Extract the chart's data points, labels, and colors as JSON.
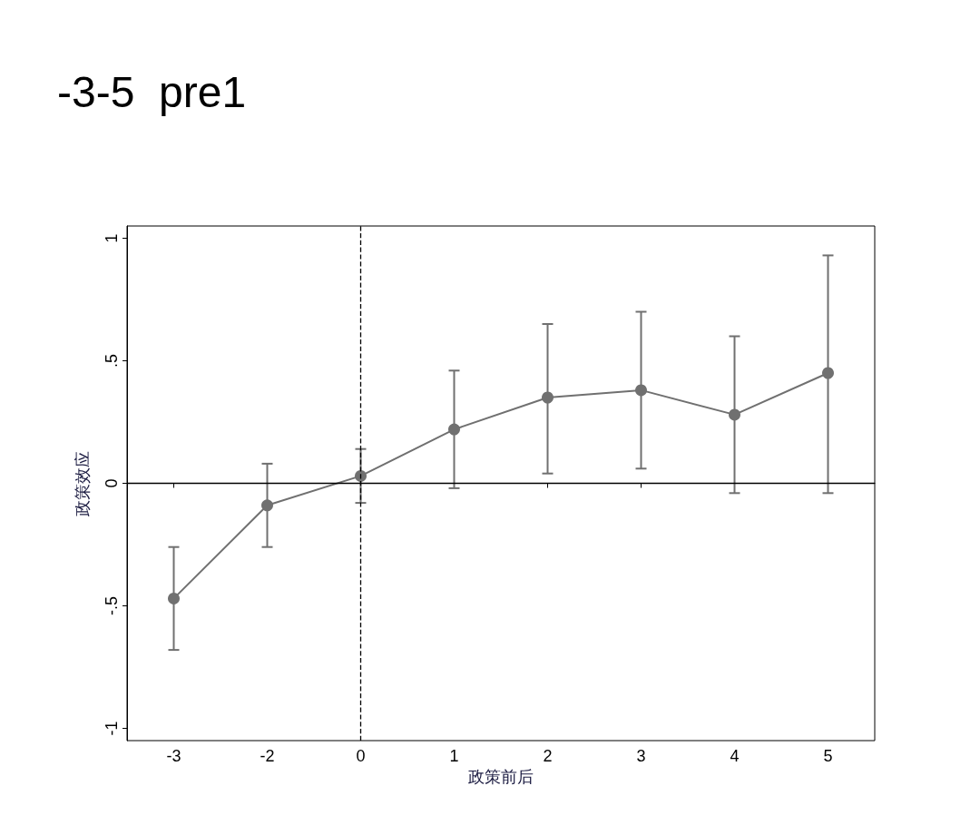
{
  "chart_data": {
    "type": "line",
    "title": "-3-5  pre1",
    "xlabel": "政策前后",
    "ylabel": "政策效应",
    "categories": [
      "-3",
      "-2",
      "0",
      "1",
      "2",
      "3",
      "4",
      "5"
    ],
    "series": [
      {
        "color": "#707070",
        "values": [
          -0.47,
          -0.09,
          0.03,
          0.22,
          0.35,
          0.38,
          0.28,
          0.45
        ],
        "errors": [
          [
            -0.68,
            -0.26
          ],
          [
            -0.26,
            0.08
          ],
          [
            -0.08,
            0.14
          ],
          [
            -0.02,
            0.46
          ],
          [
            0.04,
            0.65
          ],
          [
            0.06,
            0.7
          ],
          [
            -0.04,
            0.6
          ],
          [
            -0.04,
            0.93
          ]
        ]
      }
    ],
    "ylim": [
      -1.05,
      1.05
    ],
    "yticks": [
      {
        "value": -1,
        "label": "-1"
      },
      {
        "value": -0.5,
        "label": "-.5"
      },
      0,
      {
        "value": 0.5,
        "label": ".5"
      },
      1
    ],
    "marker": "circle",
    "ref_lines": [
      {
        "axis": "x",
        "value": "0",
        "line_style": "dashed",
        "color": "#000000"
      },
      {
        "axis": "y",
        "value": 0,
        "line_style": "solid",
        "color": "#000000"
      }
    ]
  }
}
